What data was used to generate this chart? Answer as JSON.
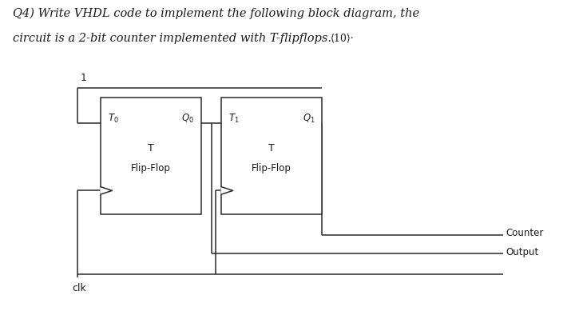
{
  "title_line1": "Q4) Write VHDL code to implement the following block diagram, the",
  "title_line2": "circuit is a 2-bit counter implemented with T-flipflops.",
  "title_suffix": "⟨10⟩·",
  "bg_color": "#ffffff",
  "box_color": "#2a2a2a",
  "text_color": "#1a1a1a",
  "ff1x": 0.175,
  "ff1y": 0.32,
  "ff1w": 0.175,
  "ff1h": 0.37,
  "ff2x": 0.385,
  "ff2y": 0.32,
  "ff2w": 0.175,
  "ff2h": 0.37,
  "label_1": "1",
  "label_clk": "clk",
  "label_counter": "Counter",
  "label_output": "Output"
}
